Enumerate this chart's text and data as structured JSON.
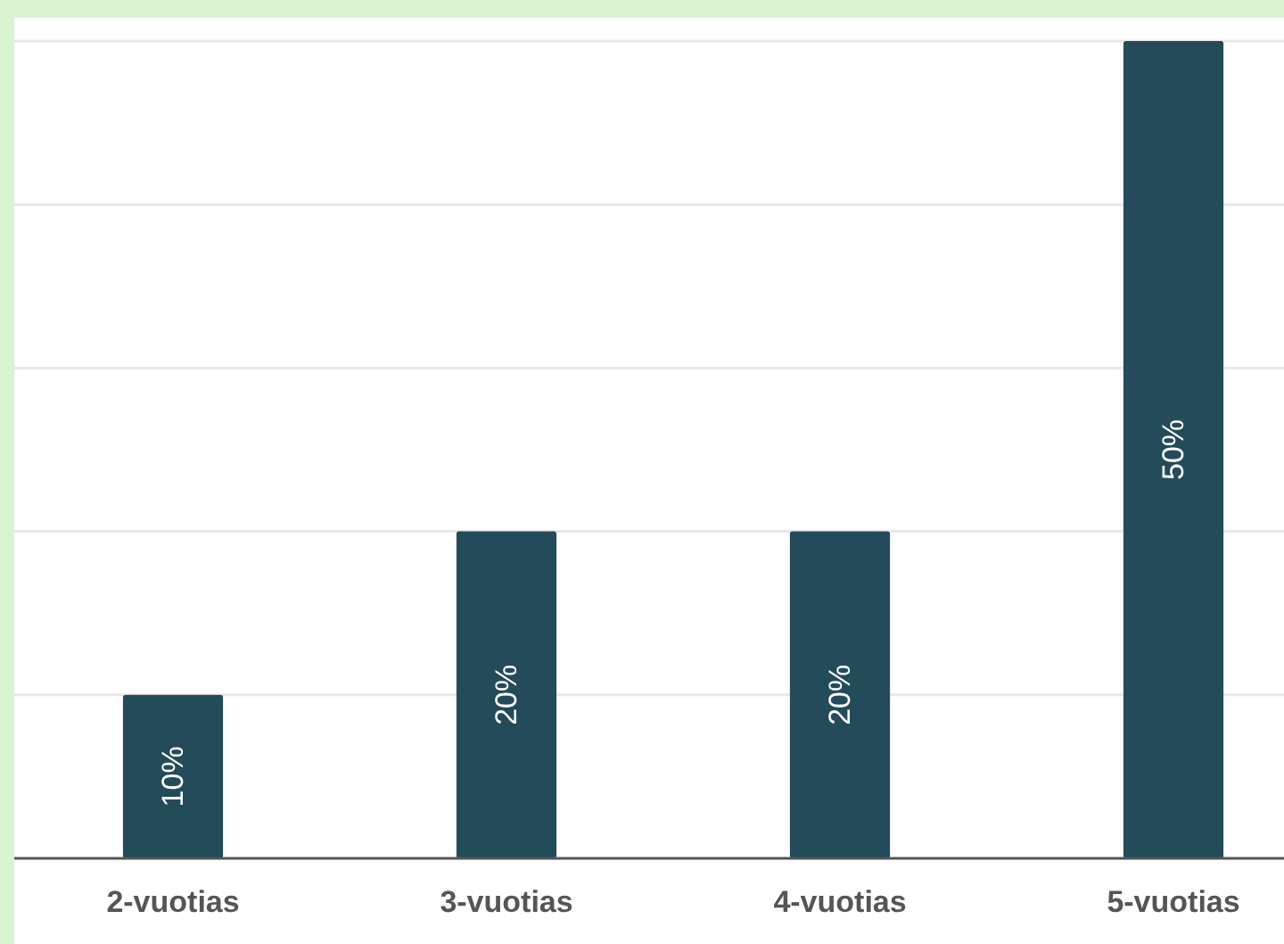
{
  "chart_data": {
    "type": "bar",
    "categories": [
      "2-vuotias",
      "3-vuotias",
      "4-vuotias",
      "5-vuotias"
    ],
    "values": [
      10,
      20,
      20,
      50
    ],
    "value_labels": [
      "10%",
      "20%",
      "20%",
      "50%"
    ],
    "color": "#234b5a",
    "ylim": [
      0,
      50
    ],
    "yticks": [
      {
        "value": 0,
        "label": null
      },
      {
        "value": 10,
        "label": null
      },
      {
        "value": 20,
        "label": null
      },
      {
        "value": 30,
        "label": null
      },
      {
        "value": 40,
        "label": null
      },
      {
        "value": 50,
        "label": null
      }
    ],
    "grid": "y",
    "tick_labels": "x"
  }
}
